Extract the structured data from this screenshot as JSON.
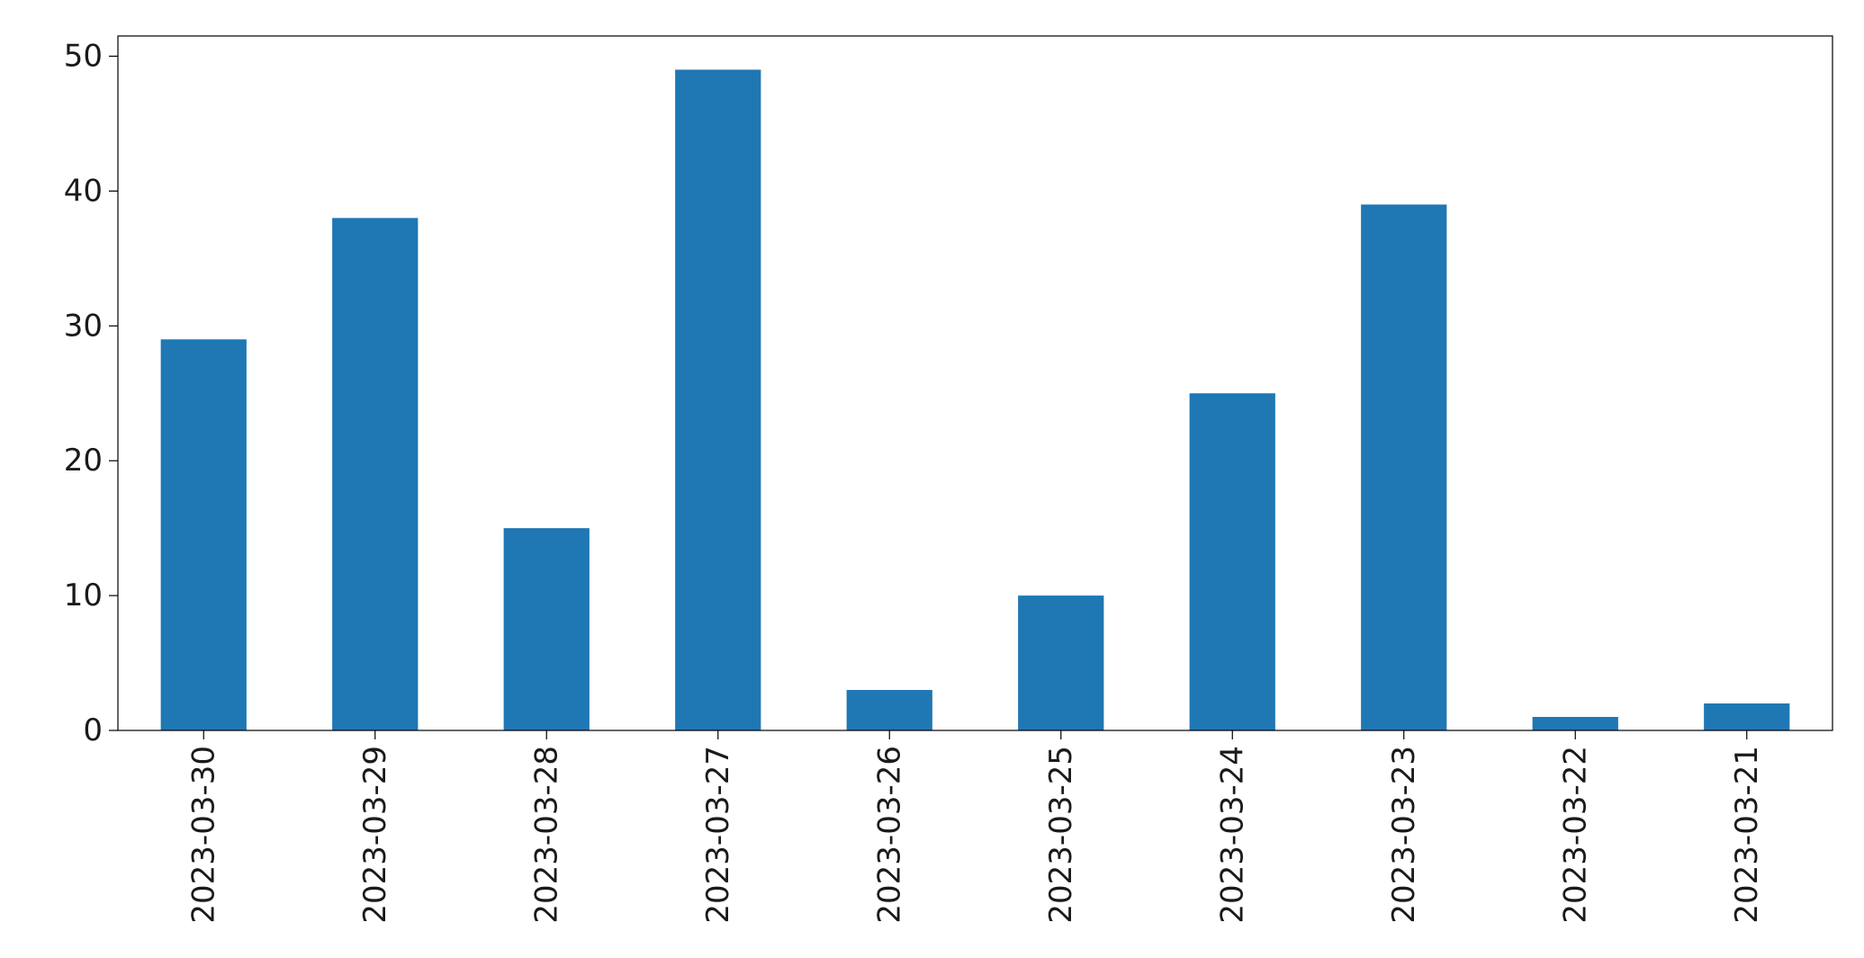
{
  "chart_data": {
    "type": "bar",
    "categories": [
      "2023-03-30",
      "2023-03-29",
      "2023-03-28",
      "2023-03-27",
      "2023-03-26",
      "2023-03-25",
      "2023-03-24",
      "2023-03-23",
      "2023-03-22",
      "2023-03-21"
    ],
    "values": [
      29,
      38,
      15,
      49,
      3,
      10,
      25,
      39,
      1,
      2
    ],
    "title": "",
    "xlabel": "",
    "ylabel": "",
    "ylim": [
      0,
      51.5
    ],
    "yticks": [
      0,
      10,
      20,
      30,
      40,
      50
    ],
    "grid": false,
    "legend": "none",
    "bar_color": "#1f77b4"
  }
}
